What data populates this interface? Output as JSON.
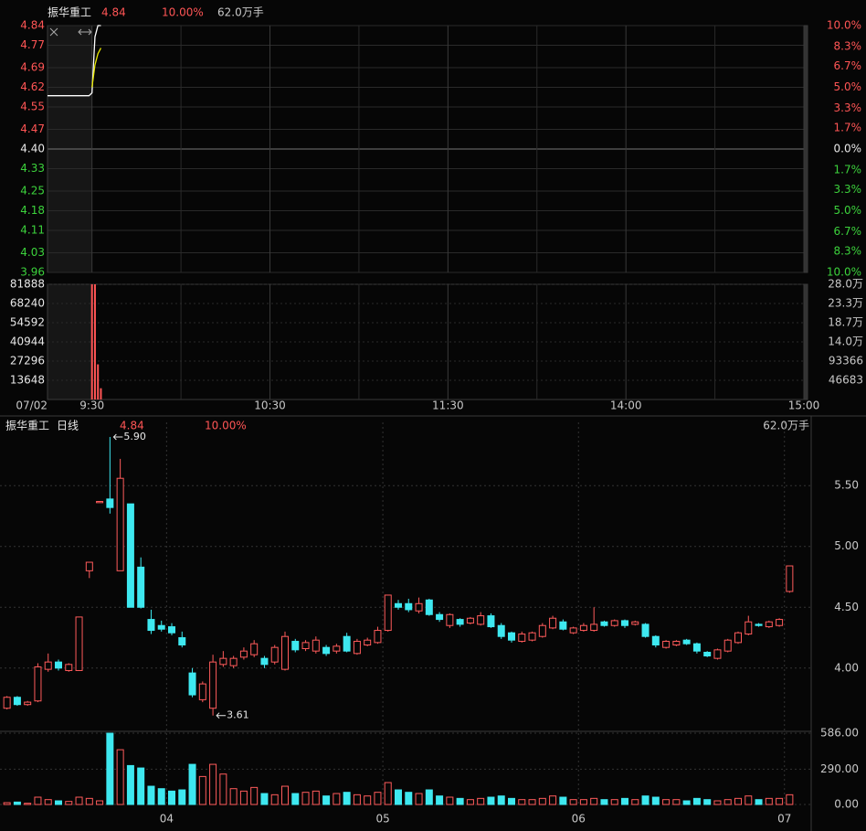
{
  "chart_data": [
    {
      "type": "line",
      "title": "振华重工",
      "price": "4.84",
      "change": "10.00%",
      "volume": "62.0万手",
      "x": [
        -15,
        -14,
        -13,
        -12,
        -11,
        -10,
        -9,
        -8,
        -7,
        -6,
        -5,
        -4,
        -3,
        -2,
        -1,
        0,
        1,
        2,
        3
      ],
      "series": [
        {
          "color": "#ffffff",
          "values": [
            4.59,
            4.59,
            4.59,
            4.59,
            4.59,
            4.59,
            4.59,
            4.59,
            4.59,
            4.59,
            4.59,
            4.59,
            4.59,
            4.59,
            4.59,
            4.6,
            4.8,
            4.84,
            4.84
          ]
        },
        {
          "color": "#e8e800",
          "values": [
            null,
            null,
            null,
            null,
            null,
            null,
            null,
            null,
            null,
            null,
            null,
            null,
            null,
            null,
            null,
            4.62,
            4.7,
            4.74,
            4.76
          ]
        }
      ],
      "xlim": [
        -15,
        240
      ],
      "xticks": [
        {
          "value": -15,
          "label": "07/02"
        },
        {
          "value": 0,
          "label": "9:30"
        },
        {
          "value": 60,
          "label": "10:30"
        },
        {
          "value": 120,
          "label": "11:30"
        },
        {
          "value": 180,
          "label": "14:00"
        },
        {
          "value": 240,
          "label": "15:00"
        }
      ],
      "xgrid": [
        30,
        90,
        150,
        210
      ],
      "ylim": [
        3.96,
        4.84
      ],
      "yticks": [
        4.84,
        4.77,
        4.69,
        4.62,
        4.55,
        4.47,
        {
          "value": 4.4,
          "label": "4.40"
        },
        4.33,
        4.25,
        4.18,
        4.11,
        4.03,
        3.96
      ],
      "y2lim": [
        -10,
        10
      ],
      "y2ticks": [
        {
          "value": 10,
          "label": "10.0%"
        },
        {
          "value": 8.3,
          "label": "8.3%"
        },
        {
          "value": 6.7,
          "label": "6.7%"
        },
        {
          "value": 5,
          "label": "5.0%"
        },
        {
          "value": 3.3,
          "label": "3.3%"
        },
        {
          "value": 1.7,
          "label": "1.7%"
        },
        {
          "value": 0,
          "label": "0.0%"
        },
        {
          "value": -1.7,
          "label": "1.7%"
        },
        {
          "value": -3.3,
          "label": "3.3%"
        },
        {
          "value": -5,
          "label": "5.0%"
        },
        {
          "value": -6.7,
          "label": "6.7%"
        },
        {
          "value": -8.3,
          "label": "8.3%"
        },
        {
          "value": -10,
          "label": "10.0%"
        }
      ],
      "up_color": "#ff5555",
      "down_color": "#3cd23c",
      "grid": true
    },
    {
      "type": "bar",
      "x": [
        0,
        1,
        2,
        3
      ],
      "values": [
        81888,
        81888,
        25000,
        8000
      ],
      "color": "#ff5555",
      "ylim": [
        0,
        81888
      ],
      "yticks": [
        81888,
        68240,
        54592,
        40944,
        27296,
        13648
      ],
      "y2lim": [
        0,
        280000
      ],
      "y2ticks": [
        {
          "value": 280000,
          "label": "28.0万"
        },
        {
          "value": 233000,
          "label": "23.3万"
        },
        {
          "value": 187000,
          "label": "18.7万"
        },
        {
          "value": 140000,
          "label": "14.0万"
        },
        93366,
        46683
      ],
      "grid": true
    },
    {
      "type": "candlestick",
      "title": "振华重工",
      "period": "日线",
      "price": "4.84",
      "change": "10.00%",
      "volume": "62.0万手",
      "categories": [
        null,
        null,
        null,
        null,
        null,
        null,
        null,
        null,
        null,
        null,
        null,
        null,
        null,
        null,
        null,
        null,
        "04",
        null,
        null,
        null,
        null,
        null,
        null,
        null,
        null,
        null,
        null,
        null,
        null,
        null,
        null,
        null,
        null,
        null,
        null,
        null,
        null,
        "05",
        null,
        null,
        null,
        null,
        null,
        null,
        null,
        null,
        null,
        null,
        null,
        null,
        null,
        null,
        null,
        null,
        null,
        null,
        "06",
        null,
        null,
        null,
        null,
        null,
        null,
        null,
        null,
        null,
        null,
        null,
        null,
        null,
        null,
        null,
        null,
        null,
        null,
        null,
        "07"
      ],
      "open": [
        3.67,
        3.76,
        3.7,
        3.73,
        3.99,
        4.05,
        3.98,
        3.98,
        4.8,
        5.36,
        5.39,
        4.8,
        5.35,
        4.83,
        4.4,
        4.35,
        4.34,
        4.25,
        3.96,
        3.74,
        3.67,
        4.03,
        4.02,
        4.09,
        4.11,
        4.08,
        4.05,
        3.99,
        4.22,
        4.16,
        4.14,
        4.17,
        4.14,
        4.26,
        4.12,
        4.19,
        4.21,
        4.31,
        4.53,
        4.53,
        4.47,
        4.56,
        4.44,
        4.35,
        4.4,
        4.37,
        4.36,
        4.43,
        4.35,
        4.29,
        4.22,
        4.23,
        4.26,
        4.33,
        4.38,
        4.29,
        4.31,
        4.31,
        4.38,
        4.35,
        4.39,
        4.36,
        4.36,
        4.26,
        4.17,
        4.19,
        4.23,
        4.2,
        4.13,
        4.08,
        4.14,
        4.21,
        4.28,
        4.36,
        4.34,
        4.35,
        4.63
      ],
      "high": [
        3.77,
        3.77,
        3.73,
        4.04,
        4.12,
        4.07,
        4.04,
        4.42,
        4.87,
        5.37,
        5.9,
        5.72,
        5.35,
        4.91,
        4.48,
        4.39,
        4.37,
        4.3,
        4.0,
        3.89,
        4.11,
        4.14,
        4.1,
        4.17,
        4.23,
        4.1,
        4.19,
        4.3,
        4.24,
        4.23,
        4.26,
        4.19,
        4.2,
        4.29,
        4.24,
        4.25,
        4.34,
        4.6,
        4.56,
        4.57,
        4.58,
        4.57,
        4.46,
        4.45,
        4.41,
        4.42,
        4.46,
        4.45,
        4.37,
        4.3,
        4.3,
        4.3,
        4.37,
        4.43,
        4.4,
        4.34,
        4.37,
        4.5,
        4.39,
        4.4,
        4.4,
        4.39,
        4.37,
        4.27,
        4.23,
        4.23,
        4.24,
        4.21,
        4.14,
        4.16,
        4.24,
        4.3,
        4.43,
        4.37,
        4.39,
        4.41,
        4.84
      ],
      "low": [
        3.66,
        3.69,
        3.69,
        3.72,
        3.97,
        3.98,
        3.97,
        3.98,
        4.74,
        5.36,
        5.27,
        4.8,
        4.5,
        4.49,
        4.28,
        4.3,
        4.27,
        4.17,
        3.76,
        3.72,
        3.61,
        4.01,
        4.0,
        4.07,
        4.09,
        4.0,
        4.03,
        3.98,
        4.13,
        4.14,
        4.12,
        4.1,
        4.12,
        4.13,
        4.11,
        4.18,
        4.2,
        4.3,
        4.48,
        4.46,
        4.45,
        4.43,
        4.38,
        4.33,
        4.34,
        4.36,
        4.35,
        4.33,
        4.24,
        4.21,
        4.21,
        4.22,
        4.25,
        4.32,
        4.31,
        4.28,
        4.3,
        4.3,
        4.34,
        4.34,
        4.33,
        4.35,
        4.25,
        4.17,
        4.16,
        4.18,
        4.19,
        4.12,
        4.09,
        4.07,
        4.13,
        4.2,
        4.27,
        4.34,
        4.33,
        4.34,
        4.62
      ],
      "close": [
        3.76,
        3.7,
        3.72,
        4.01,
        4.05,
        4.0,
        4.03,
        4.42,
        4.87,
        5.37,
        5.32,
        5.56,
        4.5,
        4.5,
        4.31,
        4.32,
        4.29,
        4.19,
        3.78,
        3.87,
        4.05,
        4.08,
        4.08,
        4.14,
        4.2,
        4.03,
        4.17,
        4.26,
        4.15,
        4.21,
        4.23,
        4.12,
        4.18,
        4.14,
        4.22,
        4.23,
        4.31,
        4.6,
        4.5,
        4.48,
        4.53,
        4.44,
        4.4,
        4.44,
        4.36,
        4.41,
        4.43,
        4.34,
        4.26,
        4.23,
        4.28,
        4.29,
        4.35,
        4.41,
        4.32,
        4.33,
        4.35,
        4.36,
        4.35,
        4.39,
        4.35,
        4.38,
        4.26,
        4.19,
        4.22,
        4.22,
        4.2,
        4.14,
        4.1,
        4.15,
        4.23,
        4.29,
        4.38,
        4.35,
        4.38,
        4.4,
        4.84
      ],
      "ylim": [
        3.48,
        6.02
      ],
      "yticks": [
        {
          "value": 5.5,
          "label": "5.50"
        },
        {
          "value": 5,
          "label": "5.00"
        },
        {
          "value": 4.5,
          "label": "4.50"
        },
        {
          "value": 4,
          "label": "4.00"
        }
      ],
      "annotations": [
        {
          "value": 5.9,
          "label": "5.90"
        },
        {
          "value": 3.61,
          "label": "3.61"
        }
      ],
      "up_color": "#ff5b5b",
      "down_color": "#3ee8f0",
      "grid": true
    },
    {
      "type": "bar",
      "values": [
        15,
        20,
        10,
        60,
        40,
        30,
        25,
        60,
        50,
        30,
        586,
        450,
        320,
        300,
        150,
        130,
        110,
        120,
        330,
        230,
        330,
        250,
        130,
        110,
        140,
        90,
        80,
        150,
        90,
        100,
        110,
        70,
        90,
        100,
        80,
        70,
        100,
        180,
        120,
        100,
        90,
        120,
        70,
        60,
        50,
        40,
        50,
        60,
        70,
        50,
        40,
        40,
        50,
        70,
        60,
        40,
        40,
        50,
        40,
        40,
        50,
        40,
        70,
        60,
        40,
        40,
        30,
        50,
        40,
        30,
        40,
        50,
        70,
        40,
        50,
        50,
        80
      ],
      "ylim": [
        0,
        586
      ],
      "yticks": [
        {
          "value": 586,
          "label": "586.00"
        },
        {
          "value": 290,
          "label": "290.00"
        },
        {
          "value": 0,
          "label": "0.00"
        }
      ]
    }
  ]
}
